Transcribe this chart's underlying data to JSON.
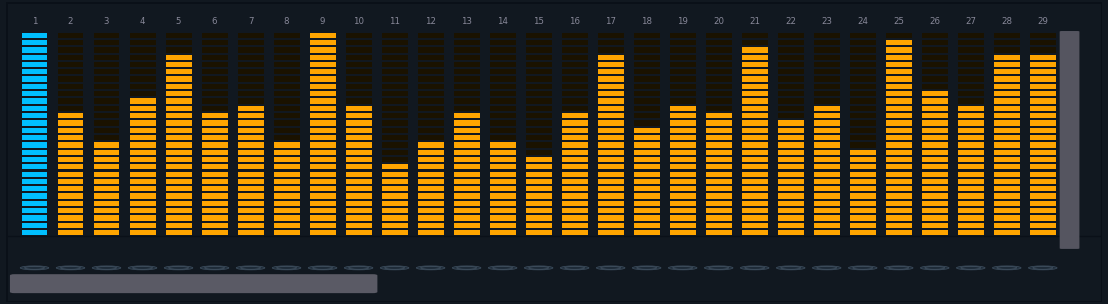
{
  "n_steps": 29,
  "bar_values": [
    1.0,
    0.62,
    0.45,
    0.68,
    0.88,
    0.6,
    0.65,
    0.48,
    1.0,
    0.65,
    0.35,
    0.45,
    0.62,
    0.48,
    0.38,
    0.6,
    0.88,
    0.52,
    0.65,
    0.6,
    0.92,
    0.58,
    0.65,
    0.42,
    0.95,
    0.72,
    0.65,
    0.88,
    0.88
  ],
  "active_color": "#ffa500",
  "inactive_color": "#1a1200",
  "cyan_color": "#00bfff",
  "cyan_inactive": "#051520",
  "background_color": "#151d28",
  "panel_color": "#1a2535",
  "num_segments": 28,
  "label_color": "#888899",
  "scrollbar_color": "#5a5a65",
  "scrollbar_track": "#111820",
  "title_numbers": [
    "1",
    "2",
    "3",
    "4",
    "5",
    "6",
    "7",
    "8",
    "9",
    "10",
    "11",
    "12",
    "13",
    "14",
    "15",
    "16",
    "17",
    "18",
    "19",
    "20",
    "21",
    "22",
    "23",
    "24",
    "25",
    "26",
    "27",
    "28",
    "29"
  ],
  "vscroll_color": "#555560",
  "outer_bg": "#111820"
}
